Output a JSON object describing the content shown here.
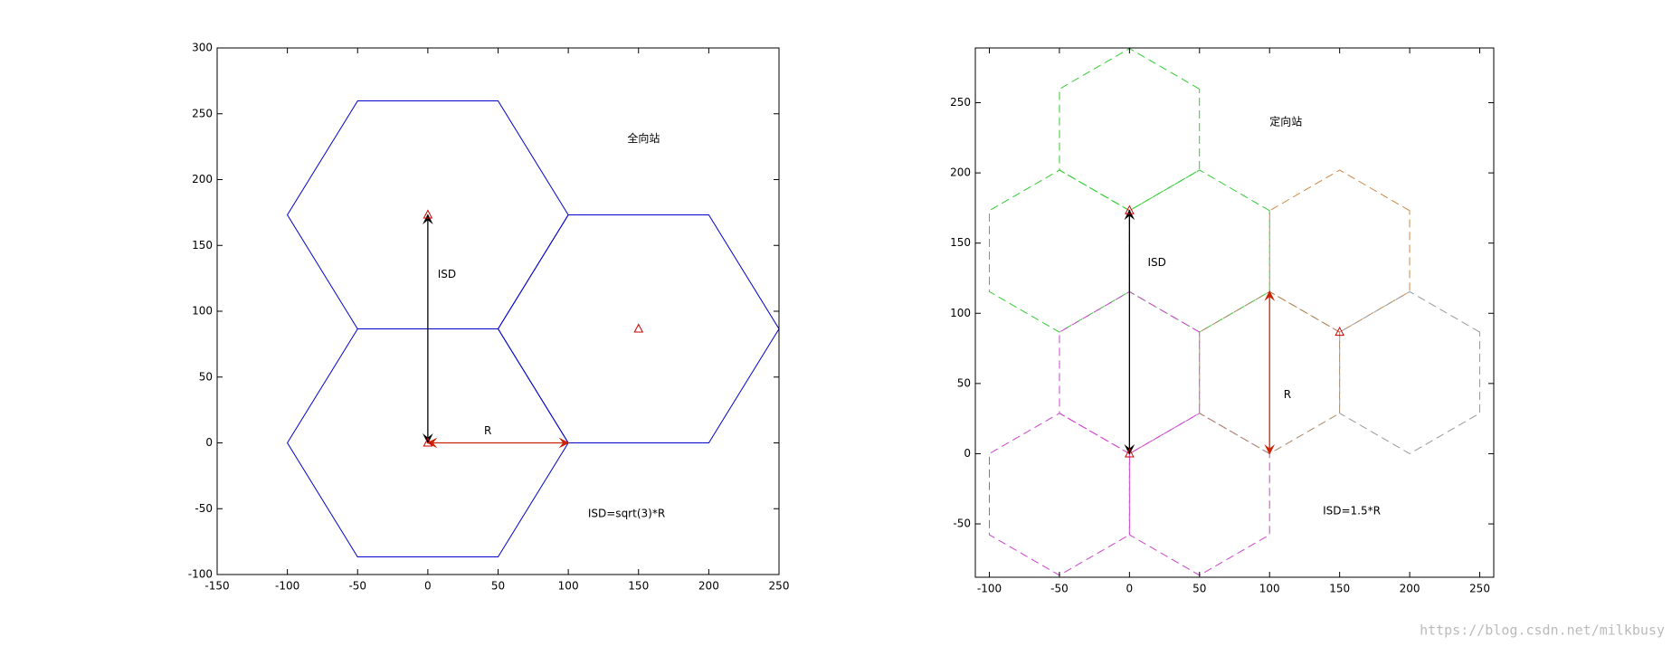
{
  "chart_data": [
    {
      "type": "hexagon-layout",
      "orientation": "flat",
      "xlim": [
        -150,
        250
      ],
      "ylim": [
        -100,
        300
      ],
      "xticks": [
        -150,
        -100,
        -50,
        0,
        50,
        100,
        150,
        200,
        250
      ],
      "yticks": [
        -100,
        -50,
        0,
        50,
        100,
        150,
        200,
        250,
        300
      ],
      "hexagons": [
        {
          "center": [
            0,
            0
          ],
          "radius": 100,
          "color": "#0000cc",
          "dashed": false
        },
        {
          "center": [
            0,
            173.2
          ],
          "radius": 100,
          "color": "#0000cc",
          "dashed": false
        },
        {
          "center": [
            150,
            86.6
          ],
          "radius": 100,
          "color": "#0000cc",
          "dashed": false
        }
      ],
      "sites": {
        "x": [
          0,
          0,
          150
        ],
        "y": [
          0,
          173.2,
          86.6
        ],
        "color": "#cc0000"
      },
      "arrows": [
        {
          "from": [
            0,
            173.2
          ],
          "to": [
            0,
            0
          ],
          "color": "#000000"
        },
        {
          "from": [
            0,
            0
          ],
          "to": [
            100,
            0
          ],
          "color": "#cc2200"
        }
      ],
      "annotations": [
        {
          "text": "全向站",
          "x": 142,
          "y": 231,
          "color": "#000000"
        },
        {
          "text": "ISD",
          "x": 7,
          "y": 128,
          "color": "#000000"
        },
        {
          "text": "R",
          "x": 40,
          "y": 9,
          "color": "#cc2200"
        },
        {
          "text": "ISD=sqrt(3)*R",
          "x": 114,
          "y": -54,
          "color": "#000000"
        }
      ]
    },
    {
      "type": "hexagon-layout",
      "orientation": "pointy",
      "xlim": [
        -110,
        260
      ],
      "ylim": [
        -88,
        289
      ],
      "xticks": [
        -100,
        -50,
        0,
        50,
        100,
        150,
        200,
        250
      ],
      "yticks": [
        -50,
        0,
        50,
        100,
        150,
        200,
        250
      ],
      "hexagons": [
        {
          "center": [
            0,
            230.9
          ],
          "radius": 57.7,
          "color": "#33cc33",
          "dashed": true
        },
        {
          "center": [
            -50,
            144.3
          ],
          "radius": 57.7,
          "color": "#33cc33",
          "dashed": true
        },
        {
          "center": [
            50,
            144.3
          ],
          "radius": 57.7,
          "color": "#33cc33",
          "dashed": true
        },
        {
          "center": [
            0,
            57.7
          ],
          "radius": 57.7,
          "color": "#cc44cc",
          "dashed": true
        },
        {
          "center": [
            -50,
            -28.9
          ],
          "radius": 57.7,
          "color": "#cc44cc",
          "dashed": true
        },
        {
          "center": [
            50,
            -28.9
          ],
          "radius": 57.7,
          "color": "#cc44cc",
          "dashed": true
        },
        {
          "center": [
            150,
            144.3
          ],
          "radius": 57.7,
          "color": "#cc8844",
          "dashed": true
        },
        {
          "center": [
            100,
            57.7
          ],
          "radius": 57.7,
          "color": "#aa8866",
          "dashed": true
        },
        {
          "center": [
            200,
            57.7
          ],
          "radius": 57.7,
          "color": "#999999",
          "dashed": true
        }
      ],
      "sites": {
        "x": [
          0,
          0,
          150
        ],
        "y": [
          0,
          173.2,
          86.6
        ],
        "color": "#cc0000"
      },
      "arrows": [
        {
          "from": [
            0,
            173.2
          ],
          "to": [
            0,
            0
          ],
          "color": "#000000"
        },
        {
          "from": [
            100,
            0
          ],
          "to": [
            100,
            115.5
          ],
          "color": "#cc2200"
        }
      ],
      "annotations": [
        {
          "text": "定向站",
          "x": 100,
          "y": 236,
          "color": "#000000"
        },
        {
          "text": "ISD",
          "x": 13,
          "y": 136,
          "color": "#000000"
        },
        {
          "text": "R",
          "x": 110,
          "y": 42,
          "color": "#cc2200"
        },
        {
          "text": "ISD=1.5*R",
          "x": 138,
          "y": -41,
          "color": "#000000"
        }
      ]
    }
  ],
  "watermark": "https://blog.csdn.net/milkbusy"
}
